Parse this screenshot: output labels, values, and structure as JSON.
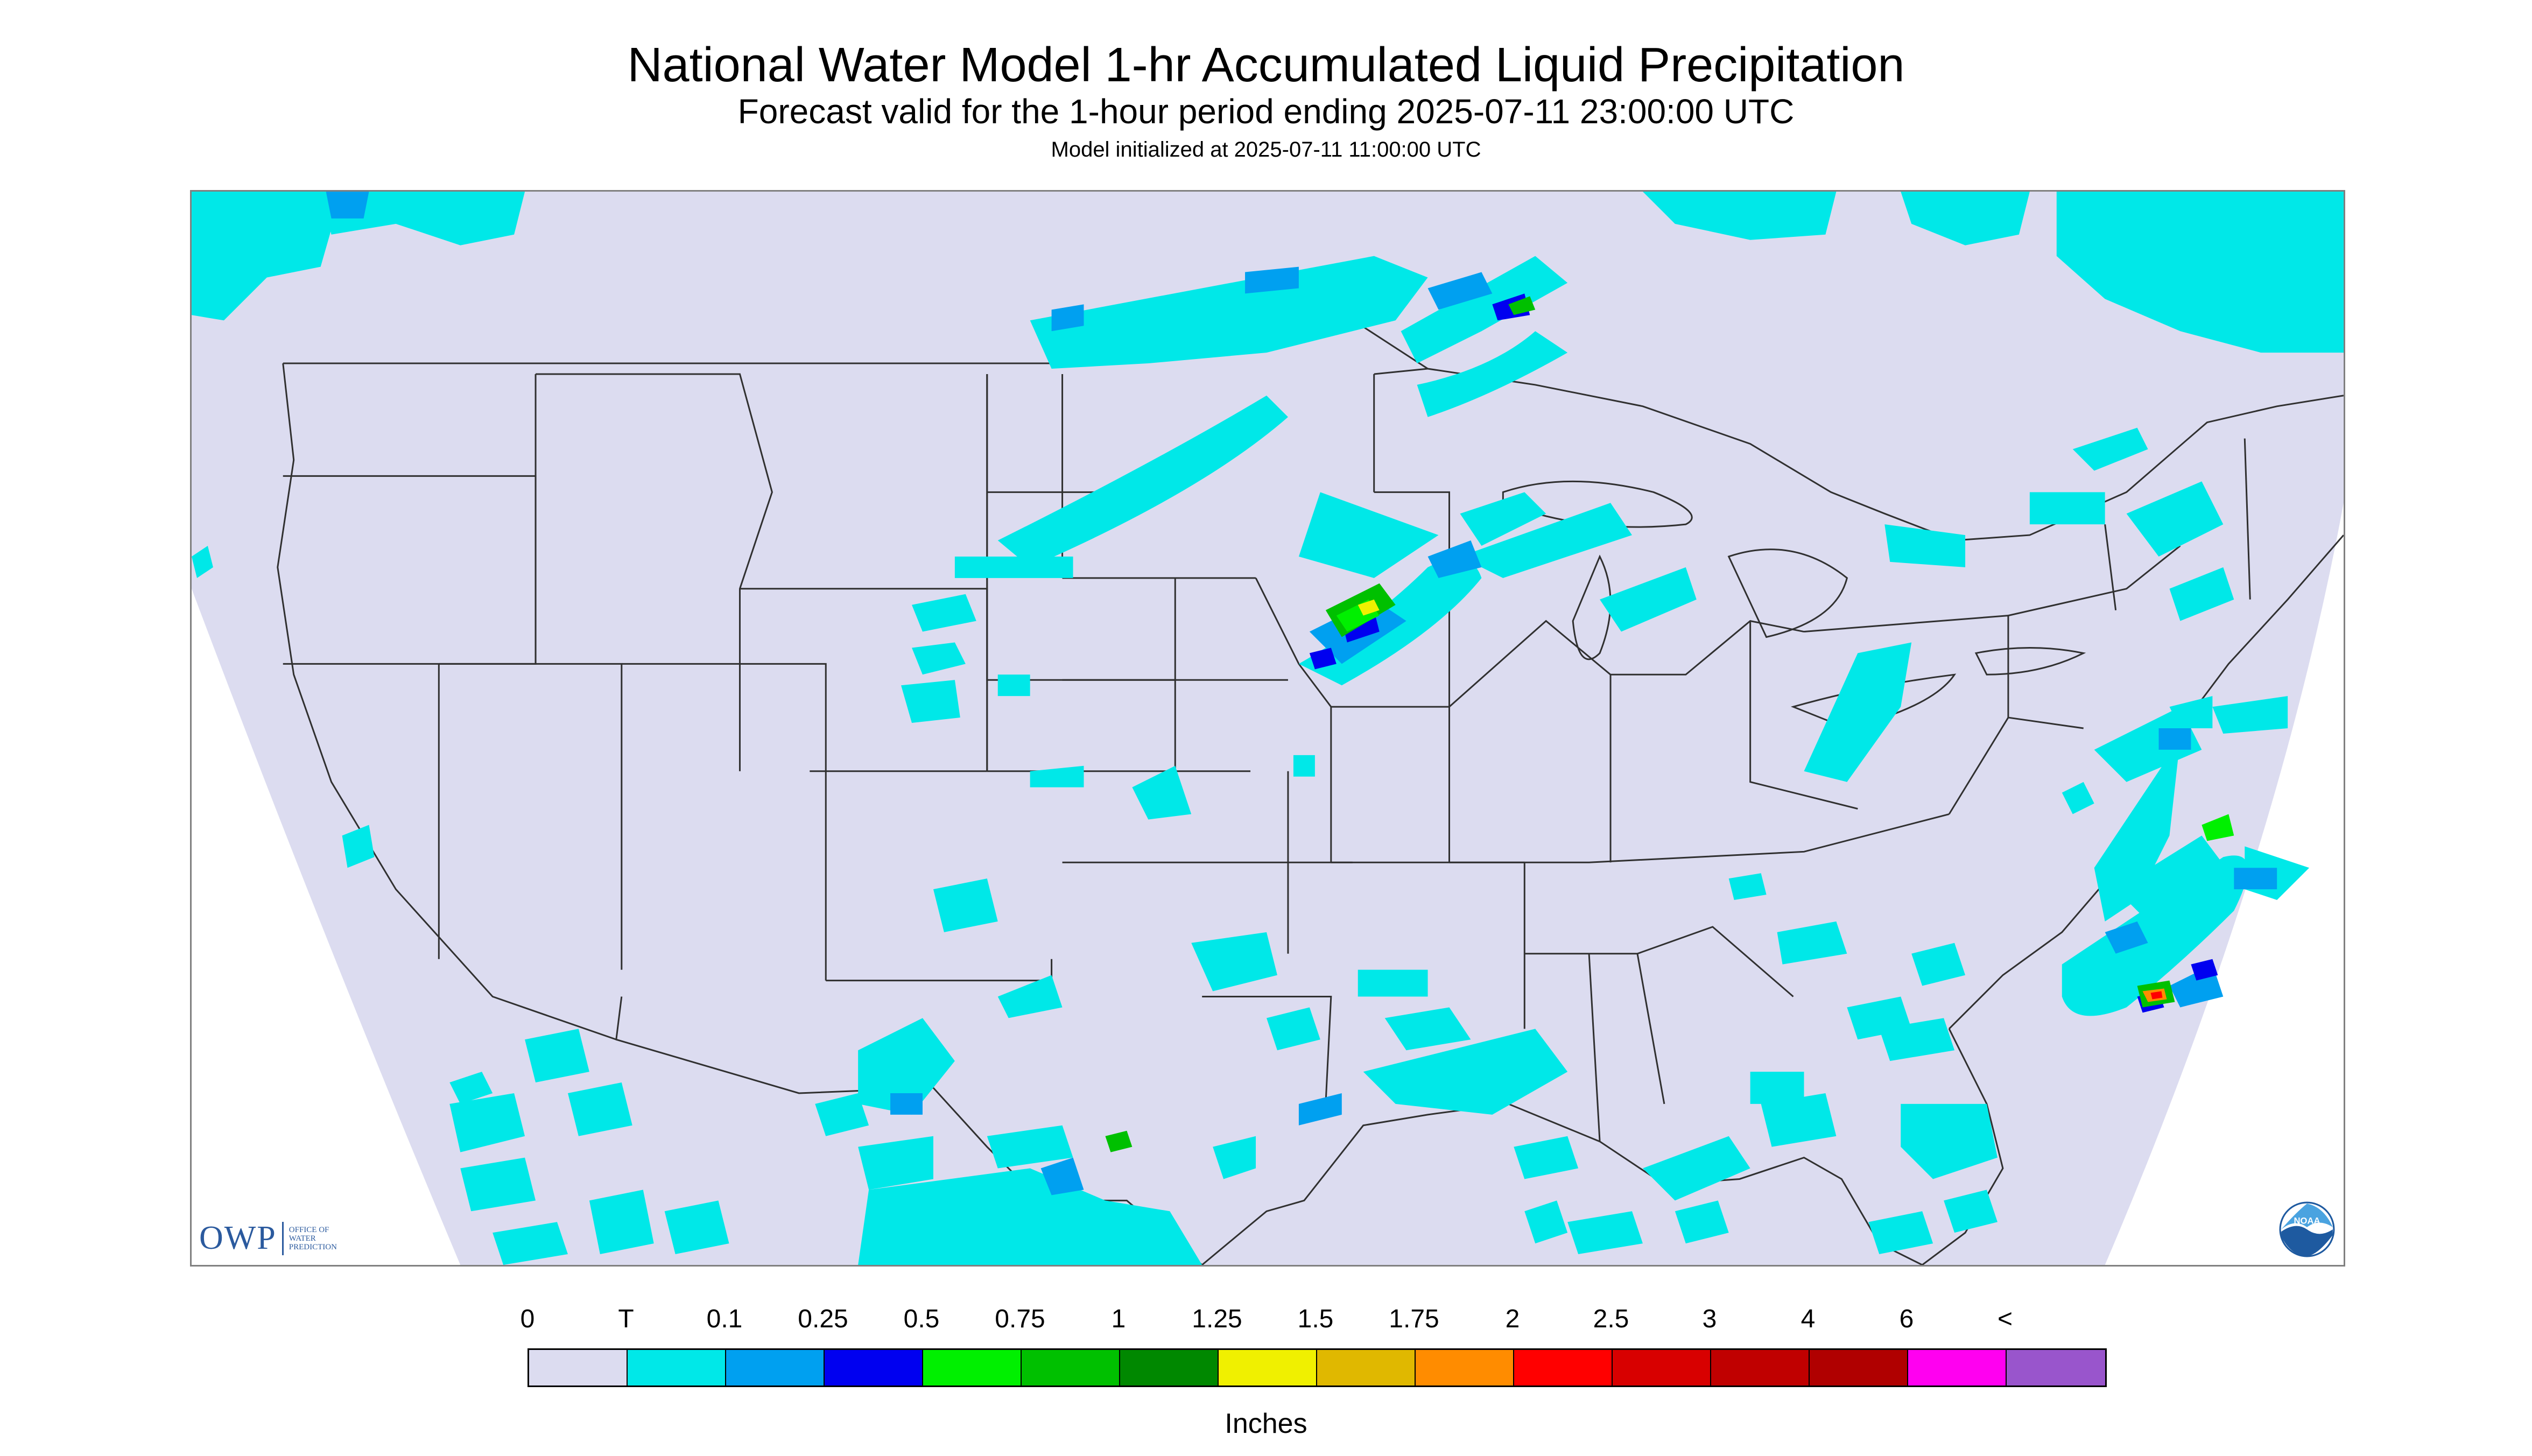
{
  "header": {
    "title": "National Water Model 1-hr Accumulated Liquid Precipitation",
    "subtitle": "Forecast valid for the 1-hour period ending 2025-07-11 23:00:00 UTC",
    "init_line": "Model initialized at 2025-07-11 11:00:00 UTC"
  },
  "map": {
    "region": "CONUS",
    "background_color": "#dcdcf0",
    "boundary_color": "#303030",
    "precip_colors": {
      "trace": "#00e8e8",
      "light": "#00a0f0",
      "moderate": "#0000f0",
      "heavy_green": "#00f000",
      "mid_green": "#00c000",
      "dark_green": "#008800",
      "yellow": "#f0f000",
      "gold": "#e0b800",
      "orange": "#ff8c00",
      "red": "#ff0000"
    }
  },
  "logos": {
    "owp_mark": "OWP",
    "owp_text_line1": "OFFICE OF",
    "owp_text_line2": "WATER",
    "owp_text_line3": "PREDICTION",
    "noaa_icon": "noaa-emblem-icon"
  },
  "legend": {
    "units": "Inches",
    "tick_labels": [
      "0",
      "T",
      "0.1",
      "0.25",
      "0.5",
      "0.75",
      "1",
      "1.25",
      "1.5",
      "1.75",
      "2",
      "2.5",
      "3",
      "4",
      "6",
      "<"
    ],
    "colors": [
      "#dcdcf0",
      "#00e8e8",
      "#00a0f0",
      "#0000f0",
      "#00f000",
      "#00c000",
      "#008800",
      "#f0f000",
      "#e0b800",
      "#ff8c00",
      "#ff0000",
      "#d80000",
      "#c00000",
      "#b00000",
      "#ff00f0",
      "#9955cc"
    ]
  }
}
